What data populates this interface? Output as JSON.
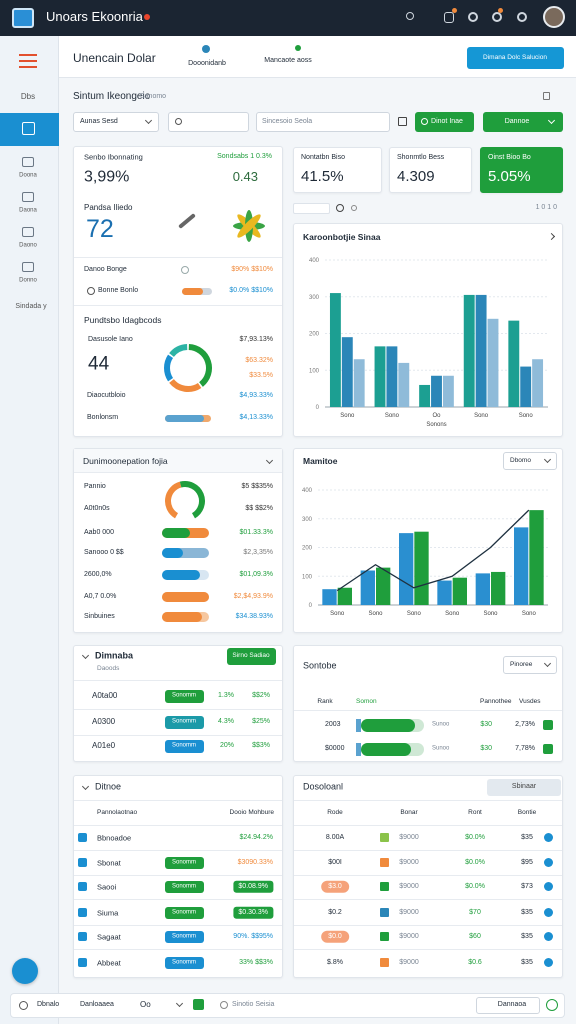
{
  "header": {
    "title": "Unoars Ekoonria"
  },
  "sidebar": {
    "items": [
      "Dbs",
      "Doona",
      "Daona",
      "Daono",
      "Donno"
    ],
    "more": "Sindada y"
  },
  "subheader": {
    "title": "Unencain Dolar",
    "tabs": [
      "Dooonidanb",
      "Mancaote aoss"
    ],
    "button": "Dimana Dolc Salucion"
  },
  "section": {
    "title": "Sintum Ikeongeio",
    "hint": "Sanomo"
  },
  "filters": {
    "select": "Aunas Sesd",
    "input": "Sincesoio Seola",
    "buttons": [
      "Dinot Inae",
      "Dannoe"
    ]
  },
  "overview": {
    "label": "Senbo Ibonnating",
    "change": "Sondsabs 1 0.3%",
    "value": "3,99%",
    "sub": "0.43",
    "score_label": "Pandsa Iliedo",
    "score": "72",
    "rows": [
      {
        "label": "Danoo Bonge",
        "value": "$90% $$10%"
      },
      {
        "label": "Bonne Bonlo",
        "value": "$0.0% $$10%",
        "progress": 70
      }
    ],
    "donut_title": "Pundtsbo Idagbcods",
    "donut_label": "Dasusole Iano",
    "donut_value": "44",
    "donut_values": [
      "$7,93.13%",
      "$63.32%",
      "$33.5%",
      "$4,93.33%",
      "$4,13.33%"
    ],
    "legend_labels": [
      "Diaocutbloio",
      "Bonlonsm"
    ],
    "legend_progress": 85
  },
  "kpis": [
    {
      "label": "Nontatbn Biso",
      "value": "41.5%"
    },
    {
      "label": "Shonmtlo Bess",
      "value": "4.309"
    },
    {
      "label": "Oinst Bioo Bo",
      "value": "5.05%"
    }
  ],
  "toolbar": {
    "pages": "1 0 1 0"
  },
  "chart_data": [
    {
      "type": "bar",
      "title": "Karoonbotjie Sinaa",
      "x_label": "Sonons",
      "categories": [
        "Sono",
        "Sono",
        "Oo",
        "Sono",
        "Sono"
      ],
      "ylim": [
        0,
        400
      ],
      "yticks": [
        0,
        100,
        200,
        300,
        400
      ],
      "grid": true,
      "series": [
        {
          "color": "#1c9f92",
          "values": [
            310,
            165,
            60,
            305,
            235
          ]
        },
        {
          "color": "#2b86b8",
          "values": [
            190,
            165,
            85,
            305,
            110
          ]
        },
        {
          "color": "#8fbbd9",
          "values": [
            130,
            120,
            85,
            240,
            130
          ]
        }
      ]
    },
    {
      "type": "bar",
      "title": "Mamitoe",
      "control": "Dbomo",
      "categories": [
        "Sono",
        "Sono",
        "Sono",
        "Sono",
        "Sono",
        "Sono"
      ],
      "ylim": [
        0,
        400
      ],
      "yticks": [
        0,
        100,
        200,
        300,
        400
      ],
      "grid": true,
      "series": [
        {
          "color": "#2a8fd0",
          "values": [
            55,
            120,
            250,
            85,
            110,
            270
          ]
        },
        {
          "color": "#1f9e3c",
          "values": [
            60,
            130,
            255,
            95,
            115,
            330
          ]
        },
        {
          "kind": "line",
          "color": "#1f3140",
          "values": [
            50,
            140,
            60,
            100,
            200,
            330
          ]
        }
      ]
    },
    {
      "type": "pie",
      "values": [
        40,
        25,
        20,
        15
      ],
      "colors": [
        "#1f9e3c",
        "#f08a3c",
        "#1a8fd1",
        "#2cb3a5"
      ]
    }
  ],
  "breakdown": {
    "title": "Dunimoonepation fojia",
    "gauge": 55,
    "rows": [
      {
        "label": "Pannio",
        "value": "$5 $$35%"
      },
      {
        "label": "A0t0n0s",
        "value": "$$ $$2%"
      },
      {
        "label": "Aab0 000",
        "value": "$01.33.3%",
        "progress": 60
      },
      {
        "label": "Sanooo 0 $$",
        "value": "$2,3,35%",
        "progress": 45
      },
      {
        "label": "2600,0%",
        "value": "$01,09.3%",
        "progress": 80
      },
      {
        "label": "A0,7 0.0%",
        "value": "$2,$4,93.9%",
        "progress": 100
      },
      {
        "label": "Sinbuines",
        "value": "$34.38.93%",
        "progress": 85
      }
    ]
  },
  "domains": {
    "title": "Dimnaba",
    "sub": "Daoods",
    "button": "Sirno Sadiao",
    "rows": [
      {
        "label": "A0ta00",
        "tag": "Sonomm",
        "value": "1.3%",
        "change": "$$2%"
      },
      {
        "label": "A0300",
        "tag": "Sonomm",
        "value": "4.3%",
        "change": "$25%"
      },
      {
        "label": "A01e0",
        "tag": "Sonomm",
        "value": "20%",
        "change": "$$3%"
      }
    ]
  },
  "ranking": {
    "title": "Sontobe",
    "select": "Pinoree",
    "columns": [
      "Rank",
      "Somon",
      "Pannothee",
      "Vusdes"
    ],
    "rows": [
      {
        "rank": "2003",
        "progress": 85,
        "name": "Sunoo",
        "value": "$30",
        "change": "2,73%"
      },
      {
        "rank": "$0000",
        "progress": 80,
        "name": "Sunoo",
        "value": "$30",
        "change": "7,78%"
      }
    ]
  },
  "list": {
    "title": "Ditnoe",
    "columns": [
      "Pannolaotnao",
      "Dooio Mohbure"
    ],
    "rows": [
      {
        "label": "Bbnoadoe",
        "value": "$24.94.2%"
      },
      {
        "label": "Sbonat",
        "tag": "Sonomm",
        "value": "$3090.33%"
      },
      {
        "label": "Saooi",
        "tag": "Sonomm",
        "value": "$0.08.9%"
      },
      {
        "label": "Siuma",
        "tag": "Sonomm",
        "value": "$0.30.3%"
      },
      {
        "label": "Sagaat",
        "tag": "Sonomm",
        "value": "90%. $$95%"
      },
      {
        "label": "Abbeat",
        "tag": "Sonomm",
        "value": "33% $$3%"
      }
    ]
  },
  "table": {
    "title": "Dosoloanl",
    "button": "Sbinaar",
    "columns": [
      "Rode",
      "Bonar",
      "Ront",
      "Bontie"
    ],
    "rows": [
      {
        "code": "8.00A",
        "amount": "$9000",
        "rate": "$0.0%",
        "total": "$35"
      },
      {
        "code": "$00I",
        "amount": "$9000",
        "rate": "$0.0%",
        "total": "$95"
      },
      {
        "code": "$3.0",
        "amount": "$9000",
        "rate": "$0.0%",
        "total": "$73"
      },
      {
        "code": "$0.2",
        "amount": "$9000",
        "rate": "$70",
        "total": "$35"
      },
      {
        "code": "$0.0",
        "amount": "$9000",
        "rate": "$60",
        "total": "$35"
      },
      {
        "code": "$.8%",
        "amount": "$9000",
        "rate": "$0.6",
        "total": "$35"
      }
    ]
  },
  "footer": {
    "items": [
      "Dbnalo",
      "Danloaaea",
      "Oo",
      "Sinotio Seisia"
    ],
    "button": "Dannaoa"
  }
}
